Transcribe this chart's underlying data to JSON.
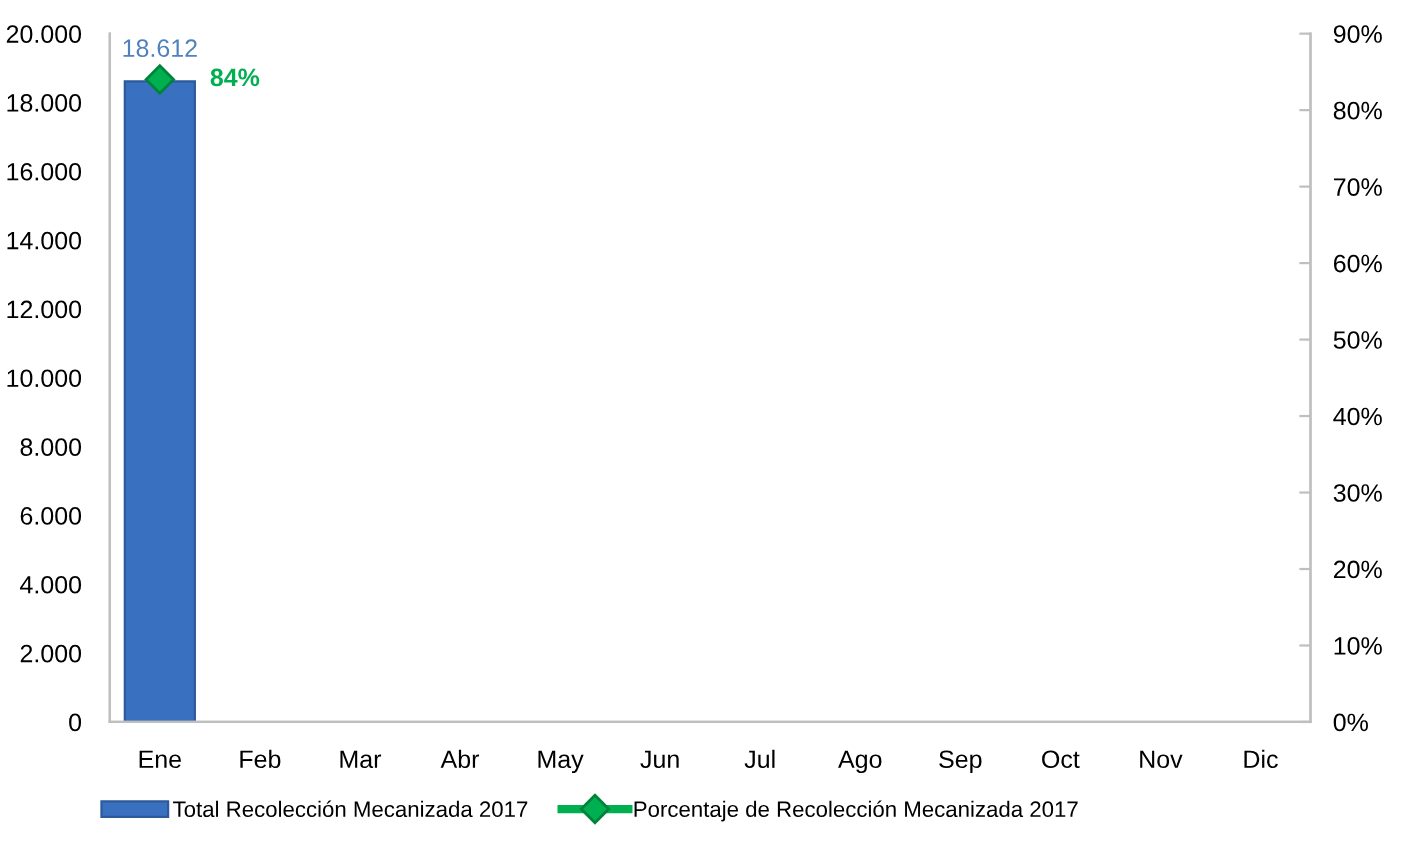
{
  "chart_data": {
    "type": "bar",
    "categories": [
      "Ene",
      "Feb",
      "Mar",
      "Abr",
      "May",
      "Jun",
      "Jul",
      "Ago",
      "Sep",
      "Oct",
      "Nov",
      "Dic"
    ],
    "series": [
      {
        "name": "Total Recolección Mecanizada 2017",
        "color": "#3a70c0",
        "values": [
          18612,
          null,
          null,
          null,
          null,
          null,
          null,
          null,
          null,
          null,
          null,
          null
        ],
        "value_labels": [
          "18.612",
          null,
          null,
          null,
          null,
          null,
          null,
          null,
          null,
          null,
          null,
          null
        ]
      },
      {
        "name": "Porcentaje de Recolección Mecanizada 2017",
        "type": "line",
        "axis": "y2",
        "color": "#00b050",
        "marker": "diamond",
        "values": [
          84,
          null,
          null,
          null,
          null,
          null,
          null,
          null,
          null,
          null,
          null,
          null
        ],
        "value_labels": [
          "84%",
          null,
          null,
          null,
          null,
          null,
          null,
          null,
          null,
          null,
          null,
          null
        ]
      }
    ],
    "ylim": [
      0,
      20000
    ],
    "yticks": [
      0,
      {
        "value": 2000,
        "label": "2.000"
      },
      {
        "value": 4000,
        "label": "4.000"
      },
      {
        "value": 6000,
        "label": "6.000"
      },
      {
        "value": 8000,
        "label": "8.000"
      },
      {
        "value": 10000,
        "label": "10.000"
      },
      {
        "value": 12000,
        "label": "12.000"
      },
      {
        "value": 14000,
        "label": "14.000"
      },
      {
        "value": 16000,
        "label": "16.000"
      },
      {
        "value": 18000,
        "label": "18.000"
      },
      {
        "value": 20000,
        "label": "20.000"
      }
    ],
    "y2lim": [
      0,
      90
    ],
    "y2ticks": [
      {
        "value": 0,
        "label": "0%"
      },
      {
        "value": 10,
        "label": "10%"
      },
      {
        "value": 20,
        "label": "20%"
      },
      {
        "value": 30,
        "label": "30%"
      },
      {
        "value": 40,
        "label": "40%"
      },
      {
        "value": 50,
        "label": "50%"
      },
      {
        "value": 60,
        "label": "60%"
      },
      {
        "value": 70,
        "label": "70%"
      },
      {
        "value": 80,
        "label": "80%"
      },
      {
        "value": 90,
        "label": "90%"
      }
    ],
    "legend": "bottom"
  }
}
